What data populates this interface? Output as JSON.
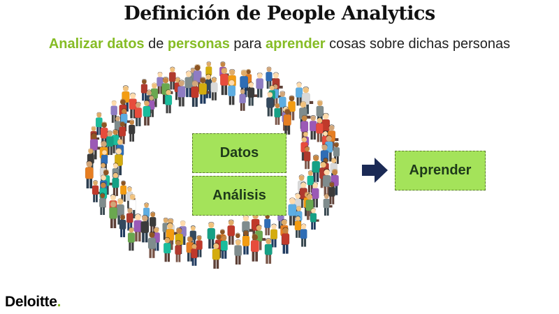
{
  "title": "Definición de People Analytics",
  "subtitle": {
    "part1": "Analizar datos",
    "part2": " de ",
    "part3": "personas",
    "part4": " para ",
    "part5": "aprender",
    "part6": " cosas sobre dichas personas"
  },
  "boxes": {
    "datos": "Datos",
    "analisis": "Análisis",
    "aprender": "Aprender"
  },
  "logo": {
    "text": "Deloitte",
    "dot": "."
  },
  "colors": {
    "accent_green": "#86bc25",
    "box_fill": "#a4e35a",
    "arrow_navy": "#1b2a55"
  }
}
